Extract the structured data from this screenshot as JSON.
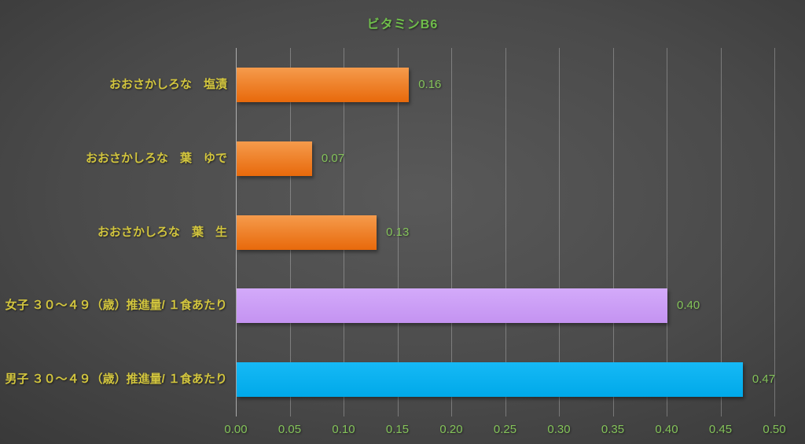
{
  "title": "ビタミンB6",
  "chart_data": {
    "type": "bar",
    "orientation": "horizontal",
    "title": "ビタミンB6",
    "categories": [
      "おおさかしろな　塩漬",
      "おおさかしろな　葉　ゆで",
      "おおさかしろな　葉　生",
      "女子 ３０～４９（歳）推進量/ １食あたり",
      "男子 ３０～４９（歳）推進量/ １食あたり"
    ],
    "values": [
      0.16,
      0.07,
      0.13,
      0.4,
      0.47
    ],
    "value_labels": [
      "0.16",
      "0.07",
      "0.13",
      "0.40",
      "0.47"
    ],
    "xlim": [
      0,
      0.5
    ],
    "x_ticks": [
      "0.00",
      "0.05",
      "0.10",
      "0.15",
      "0.20",
      "0.25",
      "0.30",
      "0.35",
      "0.40",
      "0.45",
      "0.50"
    ],
    "legend": "none",
    "grid": "vertical",
    "bar_gradients": [
      [
        "#F59B4C",
        "#E8690B"
      ],
      [
        "#F59B4C",
        "#E8690B"
      ],
      [
        "#F59B4C",
        "#E8690B"
      ],
      [
        "#D3AAFA",
        "#C493F1"
      ],
      [
        "#16B9F6",
        "#00A9E9"
      ]
    ]
  },
  "colors": {
    "title_text": "#70BF4B",
    "axis_text": "#84C35A",
    "value_text": "#84C35A",
    "category_text": "#D2C53E",
    "gridline": "rgba(255,255,255,0.28)",
    "axis_line": "rgba(255,255,255,0.55)"
  }
}
